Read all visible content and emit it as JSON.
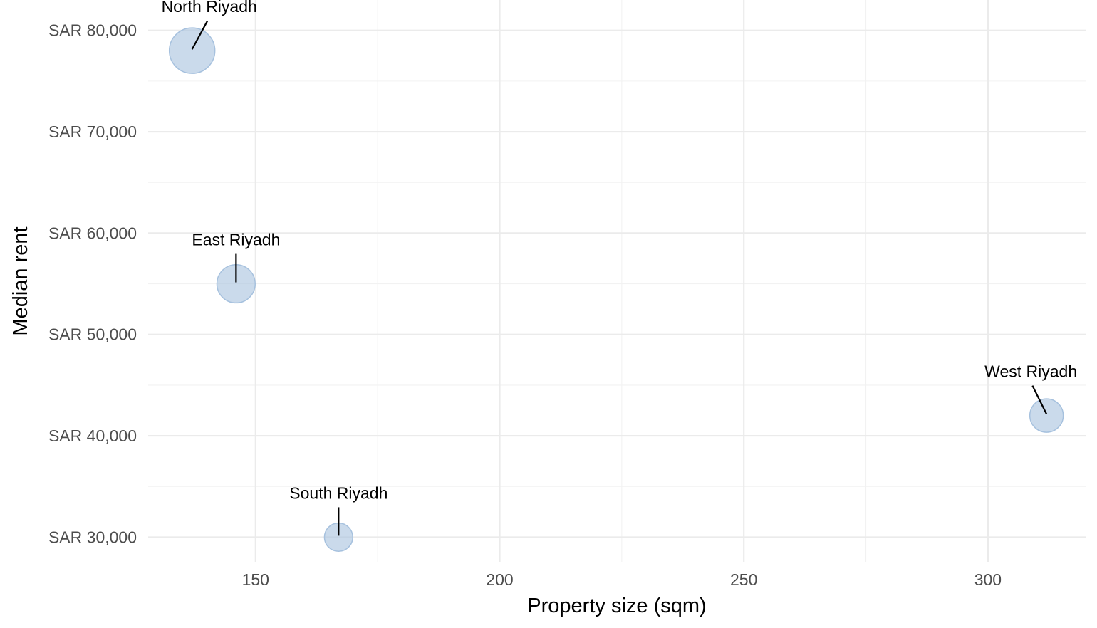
{
  "chart_data": {
    "type": "scatter",
    "title": "",
    "xlabel": "Property size (sqm)",
    "ylabel": "Median rent",
    "xlim": [
      128,
      320
    ],
    "ylim": [
      27500,
      83000
    ],
    "x_ticks": [
      150,
      200,
      250,
      300
    ],
    "x_minor_ticks": [
      175,
      225,
      275
    ],
    "y_ticks": [
      30000,
      40000,
      50000,
      60000,
      70000,
      80000
    ],
    "y_minor_ticks": [
      35000,
      45000,
      55000,
      65000,
      75000
    ],
    "y_tick_format": "SAR {value}",
    "grid": true,
    "legend": "none",
    "point_color": "#a6c1de",
    "points": [
      {
        "label": "North Riyadh",
        "x": 137,
        "y": 78000,
        "size": 78000
      },
      {
        "label": "East Riyadh",
        "x": 146,
        "y": 55000,
        "size": 55000
      },
      {
        "label": "South Riyadh",
        "x": 167,
        "y": 30000,
        "size": 30000
      },
      {
        "label": "West Riyadh",
        "x": 312,
        "y": 42000,
        "size": 42000
      }
    ]
  }
}
